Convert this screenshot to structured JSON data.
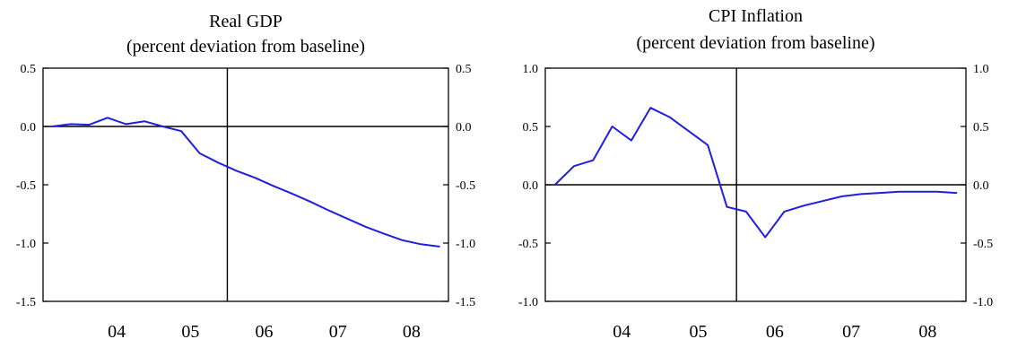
{
  "chart_data": [
    {
      "type": "line",
      "title": "Real GDP",
      "subtitle": "(percent deviation from baseline)",
      "xlabel": "",
      "ylabel": "",
      "x_tick_labels": [
        "04",
        "05",
        "06",
        "07",
        "08"
      ],
      "x_tick_positions": [
        2004.5,
        2005.5,
        2006.5,
        2007.5,
        2008.5
      ],
      "xlim": [
        2003.5,
        2009.0
      ],
      "ylim": [
        -1.5,
        0.5
      ],
      "y_ticks": [
        0.5,
        0.0,
        -0.5,
        -1.0,
        -1.5
      ],
      "y_tick_labels": [
        "0.5",
        "0.0",
        "-0.5",
        "-1.0",
        "-1.5"
      ],
      "zero_line": 0.0,
      "vertical_marker_x": 2006.0,
      "grid": false,
      "line_color": "#1f1fe0",
      "series": [
        {
          "x": [
            2003.625,
            2003.875,
            2004.125,
            2004.375,
            2004.625,
            2004.875,
            2005.125,
            2005.375,
            2005.625,
            2005.875,
            2006.125,
            2006.375,
            2006.625,
            2006.875,
            2007.125,
            2007.375,
            2007.625,
            2007.875,
            2008.125,
            2008.375,
            2008.625,
            2008.875
          ],
          "y": [
            0.0,
            0.02,
            0.015,
            0.075,
            0.02,
            0.045,
            0.0,
            -0.04,
            -0.23,
            -0.31,
            -0.38,
            -0.44,
            -0.51,
            -0.575,
            -0.645,
            -0.72,
            -0.79,
            -0.86,
            -0.92,
            -0.975,
            -1.01,
            -1.03
          ]
        }
      ]
    },
    {
      "type": "line",
      "title": "CPI Inflation",
      "subtitle": "(percent deviation from baseline)",
      "xlabel": "",
      "ylabel": "",
      "x_tick_labels": [
        "04",
        "05",
        "06",
        "07",
        "08"
      ],
      "x_tick_positions": [
        2004.5,
        2005.5,
        2006.5,
        2007.5,
        2008.5
      ],
      "xlim": [
        2003.5,
        2009.0
      ],
      "ylim": [
        -1.0,
        1.0
      ],
      "y_ticks": [
        1.0,
        0.5,
        0.0,
        -0.5,
        -1.0
      ],
      "y_tick_labels": [
        "1.0",
        "0.5",
        "0.0",
        "-0.5",
        "-1.0"
      ],
      "zero_line": 0.0,
      "vertical_marker_x": 2006.0,
      "grid": false,
      "line_color": "#1f1fe0",
      "series": [
        {
          "x": [
            2003.625,
            2003.875,
            2004.125,
            2004.375,
            2004.625,
            2004.875,
            2005.125,
            2005.375,
            2005.625,
            2005.875,
            2006.125,
            2006.375,
            2006.625,
            2006.875,
            2007.125,
            2007.375,
            2007.625,
            2007.875,
            2008.125,
            2008.375,
            2008.625,
            2008.875
          ],
          "y": [
            0.0,
            0.16,
            0.21,
            0.5,
            0.38,
            0.66,
            0.58,
            0.46,
            0.34,
            -0.19,
            -0.23,
            -0.45,
            -0.23,
            -0.18,
            -0.14,
            -0.1,
            -0.08,
            -0.07,
            -0.06,
            -0.06,
            -0.06,
            -0.07
          ]
        }
      ]
    }
  ]
}
